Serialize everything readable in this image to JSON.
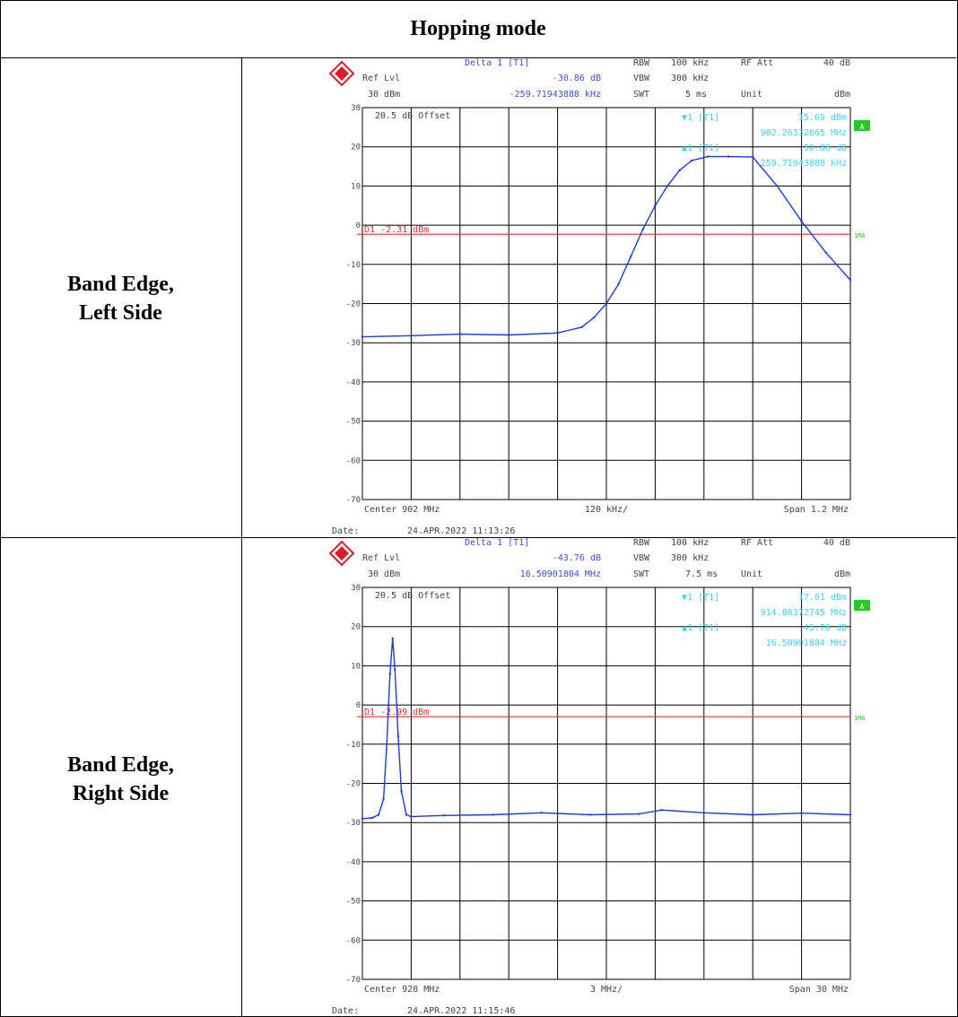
{
  "header": {
    "title": "Hopping mode"
  },
  "rows": [
    {
      "label_line1": "Band Edge,",
      "label_line2": "Left Side"
    },
    {
      "label_line1": "Band Edge,",
      "label_line2": "Right Side"
    }
  ],
  "colors": {
    "trace": "#1a3ccf",
    "display_line": "#e03030",
    "marker": "#40d0f0",
    "grid": "#000000",
    "mode_badge": "#22cc22",
    "logo": "#d81e2a"
  },
  "chart_data": [
    {
      "type": "line",
      "header": {
        "delta_title": "Delta 1 [T1]",
        "ref_lvl_label": "Ref Lvl",
        "ref_lvl_value": "30 dBm",
        "delta_level": "-30.86 dB",
        "delta_freq": "-259.71943888 kHz",
        "rbw_label": "RBW",
        "rbw_value": "100 kHz",
        "vbw_label": "VBW",
        "vbw_value": "300 kHz",
        "swt_label": "SWT",
        "swt_value": "5 ms",
        "rf_att_label": "RF Att",
        "rf_att_value": "40 dB",
        "unit_label": "Unit",
        "unit_value": "dBm"
      },
      "offset_text": "20.5 dB Offset",
      "marker_info": [
        "▼1 [T1]",
        "15.69 dBm",
        "902.26332665 MHz",
        "▲1 [T1]",
        "-30.86 dB",
        "-259.71943888 kHz"
      ],
      "mode_badge": "A",
      "trace_label": "1MA",
      "display_line": {
        "label": "D1  -2.31 dBm",
        "level": -2.31
      },
      "y_ticks": [
        30,
        20,
        10,
        0,
        -10,
        -20,
        -30,
        -40,
        -50,
        -60,
        -70
      ],
      "ylim": [
        -70,
        30
      ],
      "xlim": [
        901.4,
        902.6
      ],
      "footer": {
        "center": "Center 902 MHz",
        "div": "120 kHz/",
        "span": "Span 1.2 MHz",
        "date_label": "Date:",
        "date_value": "24.APR.2022  11:13:26"
      },
      "series": [
        {
          "x": [
            901.4,
            901.52,
            901.64,
            901.76,
            901.88,
            901.94,
            901.97,
            902.0,
            902.03,
            902.06,
            902.09,
            902.12,
            902.15,
            902.18,
            902.21,
            902.25,
            902.3,
            902.36,
            902.42,
            902.48,
            902.54,
            902.6
          ],
          "y": [
            -28.5,
            -28.2,
            -27.8,
            -28.0,
            -27.5,
            -26.0,
            -23.5,
            -20.0,
            -15.0,
            -8.0,
            -1.0,
            5.0,
            10.0,
            14.0,
            16.5,
            17.5,
            17.5,
            17.4,
            10.0,
            1.0,
            -7.0,
            -14.0
          ]
        }
      ]
    },
    {
      "type": "line",
      "header": {
        "delta_title": "Delta 1 [T1]",
        "ref_lvl_label": "Ref Lvl",
        "ref_lvl_value": "30 dBm",
        "delta_level": "-43.76 dB",
        "delta_freq": "16.50901804 MHz",
        "rbw_label": "RBW",
        "rbw_value": "100 kHz",
        "vbw_label": "VBW",
        "vbw_value": "300 kHz",
        "swt_label": "SWT",
        "swt_value": "7.5 ms",
        "rf_att_label": "RF Att",
        "rf_att_value": "40 dB",
        "unit_label": "Unit",
        "unit_value": "dBm"
      },
      "offset_text": "20.5 dB Offset",
      "marker_info": [
        "▼1 [T1]",
        "17.01 dBm",
        "914.86372745 MHz",
        "▲1 [T1]",
        "-43.76 dB",
        "16.50901804 MHz"
      ],
      "mode_badge": "A",
      "trace_label": "1MA",
      "display_line": {
        "label": "D1  -2.99 dBm",
        "level": -2.99
      },
      "y_ticks": [
        30,
        20,
        10,
        0,
        -10,
        -20,
        -30,
        -40,
        -50,
        -60,
        -70
      ],
      "ylim": [
        -70,
        30
      ],
      "xlim": [
        913.0,
        943.0
      ],
      "footer": {
        "center": "Center 928 MHz",
        "div": "3 MHz/",
        "span": "Span 30 MHz",
        "date_label": "Date:",
        "date_value": "24.APR.2022  11:15:46"
      },
      "series": [
        {
          "x": [
            913.0,
            913.6,
            914.0,
            914.3,
            914.5,
            914.7,
            914.86,
            915.0,
            915.2,
            915.4,
            915.7,
            916.0,
            918.0,
            921.0,
            924.0,
            927.0,
            930.0,
            931.4,
            934.0,
            937.0,
            940.0,
            943.0
          ],
          "y": [
            -29.0,
            -28.8,
            -28.0,
            -24.0,
            -10.0,
            8.0,
            17.0,
            9.0,
            -8.0,
            -22.0,
            -28.0,
            -28.5,
            -28.2,
            -28.0,
            -27.5,
            -28.0,
            -27.8,
            -26.8,
            -27.5,
            -28.0,
            -27.6,
            -28.0
          ]
        }
      ]
    }
  ]
}
